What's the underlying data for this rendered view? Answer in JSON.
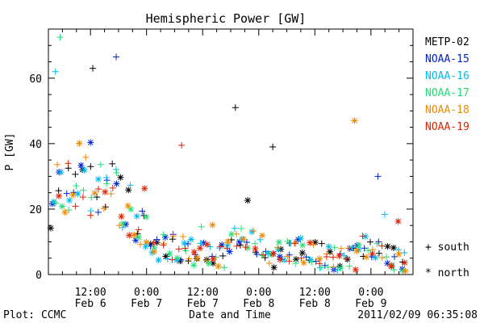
{
  "chart_data": {
    "type": "scatter",
    "title": "Hemispheric Power [GW]",
    "ylabel": "P [GW]",
    "xlabel": "Date and Time",
    "ylim": [
      0,
      75
    ],
    "xlim_hours": [
      -21,
      57
    ],
    "y_ticks": [
      0,
      20,
      40,
      60
    ],
    "x_ticks": [
      {
        "time": "12:00",
        "date": "Feb 6"
      },
      {
        "time": "0:00",
        "date": "Feb 7"
      },
      {
        "time": "12:00",
        "date": "Feb 7"
      },
      {
        "time": "0:00",
        "date": "Feb 8"
      },
      {
        "time": "12:00",
        "date": "Feb 8"
      },
      {
        "time": "0:00",
        "date": "Feb 9"
      }
    ],
    "series": [
      {
        "name": "METP-02",
        "color": "#000000"
      },
      {
        "name": "NOAA-15",
        "color": "#0022cc"
      },
      {
        "name": "NOAA-16",
        "color": "#00bbee"
      },
      {
        "name": "NOAA-17",
        "color": "#22dd77"
      },
      {
        "name": "NOAA-18",
        "color": "#ee8800"
      },
      {
        "name": "NOAA-19",
        "color": "#dd2200"
      }
    ],
    "symbol_legend": [
      {
        "symbol": "+",
        "label": "south"
      },
      {
        "symbol": "*",
        "label": "north"
      }
    ],
    "highlight_points": [
      {
        "series": "NOAA-17",
        "hour": -18.5,
        "value": 72.5,
        "hemisphere": "south"
      },
      {
        "series": "NOAA-16",
        "hour": -19.5,
        "value": 62,
        "hemisphere": "south"
      },
      {
        "series": "METP-02",
        "hour": -11.5,
        "value": 63,
        "hemisphere": "south"
      },
      {
        "series": "NOAA-15",
        "hour": -6.5,
        "value": 66.5,
        "hemisphere": "south"
      },
      {
        "series": "NOAA-19",
        "hour": 7.5,
        "value": 39.5,
        "hemisphere": "south"
      },
      {
        "series": "METP-02",
        "hour": 19,
        "value": 51,
        "hemisphere": "south"
      },
      {
        "series": "METP-02",
        "hour": 27,
        "value": 39,
        "hemisphere": "south"
      },
      {
        "series": "NOAA-18",
        "hour": 44.5,
        "value": 47,
        "hemisphere": "north"
      },
      {
        "series": "NOAA-15",
        "hour": 49.5,
        "value": 30,
        "hemisphere": "south"
      }
    ]
  },
  "footer": {
    "left": "Plot: CCMC",
    "right": "2011/02/09 06:35:08"
  }
}
